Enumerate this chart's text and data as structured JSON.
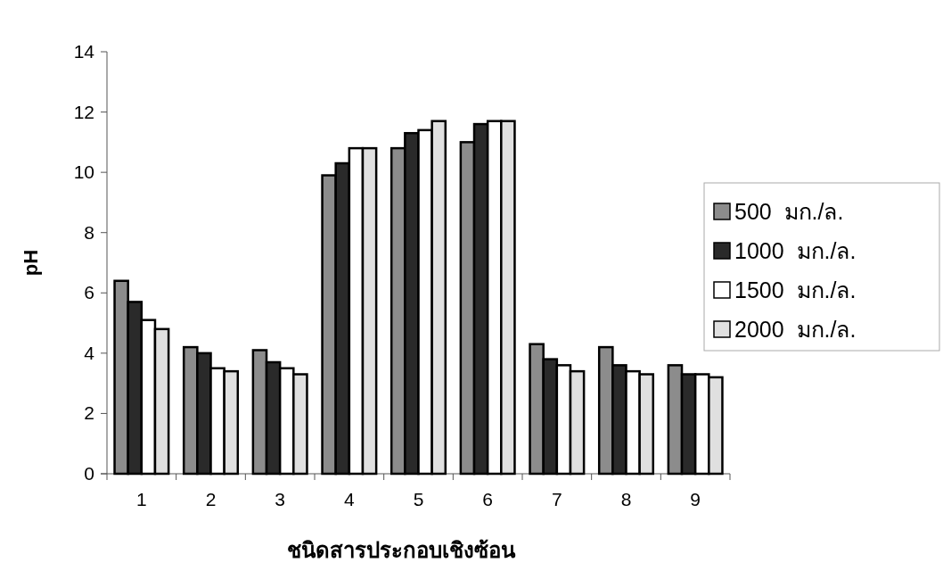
{
  "chart_data": {
    "type": "bar",
    "xlabel": "ชนิดสารประกอบเชิงซ้อน",
    "ylabel": "pH",
    "categories": [
      "1",
      "2",
      "3",
      "4",
      "5",
      "6",
      "7",
      "8",
      "9"
    ],
    "series": [
      {
        "name": "500  มก./ล.",
        "color": "#8c8c8c",
        "values": [
          6.4,
          4.2,
          4.1,
          9.9,
          10.8,
          11.0,
          4.3,
          4.2,
          3.6
        ]
      },
      {
        "name": "1000  มก./ล.",
        "color": "#2a2a2a",
        "values": [
          5.7,
          4.0,
          3.7,
          10.3,
          11.3,
          11.6,
          3.8,
          3.6,
          3.3
        ]
      },
      {
        "name": "1500  มก./ล.",
        "color": "#ffffff",
        "values": [
          5.1,
          3.5,
          3.5,
          10.8,
          11.4,
          11.7,
          3.6,
          3.4,
          3.3
        ]
      },
      {
        "name": "2000  มก./ล.",
        "color": "#e0e0e0",
        "values": [
          4.8,
          3.4,
          3.3,
          10.8,
          11.7,
          11.7,
          3.4,
          3.3,
          3.2
        ]
      }
    ],
    "ylim": [
      0,
      14
    ],
    "yticks": [
      0,
      2,
      4,
      6,
      8,
      10,
      12,
      14
    ],
    "grid": false,
    "legend": "right"
  }
}
